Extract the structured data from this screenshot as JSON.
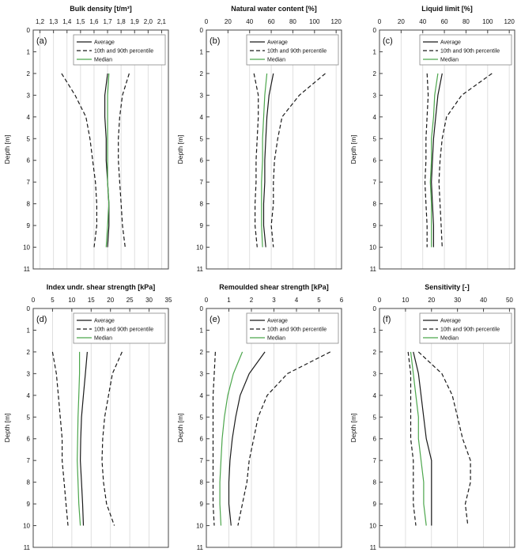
{
  "figure": {
    "background": "#ffffff"
  },
  "style": {
    "grid_color": "#dcdcdc",
    "axis_color": "#444444",
    "line_black": "#1a1a1a",
    "line_green": "#4ca64c",
    "legend_border": "#888888",
    "legend_background": "#ffffff"
  },
  "legend_entries": [
    {
      "label": "Average",
      "dash": false,
      "color": "black"
    },
    {
      "label": "10th and 90th percentile",
      "dash": true,
      "color": "black"
    },
    {
      "label": "Median",
      "dash": false,
      "color": "green"
    }
  ],
  "chart_data": [
    {
      "type": "line",
      "panel_label": "(a)",
      "title": "Bulk density [t/m³]",
      "ylabel": "Depth [m]",
      "xlim": [
        1.15,
        2.15
      ],
      "xticks": [
        1.2,
        1.3,
        1.4,
        1.5,
        1.6,
        1.7,
        1.8,
        1.9,
        2.0,
        2.1
      ],
      "xtick_labels": [
        "1,2",
        "1,3",
        "1,4",
        "1,5",
        "1,6",
        "1,7",
        "1,8",
        "1,9",
        "2,0",
        "2,1"
      ],
      "ylim": [
        0,
        11
      ],
      "yticks": [
        0,
        1,
        2,
        3,
        4,
        5,
        6,
        7,
        8,
        9,
        10,
        11
      ],
      "depths": [
        2,
        3,
        4,
        5,
        6,
        7,
        8,
        9,
        10
      ],
      "series": [
        {
          "name": "Average",
          "color": "black",
          "dash": false,
          "values": [
            1.7,
            1.68,
            1.68,
            1.69,
            1.69,
            1.7,
            1.71,
            1.71,
            1.7
          ]
        },
        {
          "name": "10th percentile",
          "color": "black",
          "dash": true,
          "values": [
            1.36,
            1.46,
            1.54,
            1.57,
            1.59,
            1.61,
            1.62,
            1.62,
            1.6
          ]
        },
        {
          "name": "90th percentile",
          "color": "black",
          "dash": true,
          "values": [
            1.86,
            1.81,
            1.79,
            1.78,
            1.78,
            1.79,
            1.8,
            1.81,
            1.83
          ]
        },
        {
          "name": "Median",
          "color": "green",
          "dash": false,
          "values": [
            1.71,
            1.7,
            1.7,
            1.7,
            1.7,
            1.7,
            1.71,
            1.7,
            1.69
          ]
        }
      ]
    },
    {
      "type": "line",
      "panel_label": "(b)",
      "title": "Natural water content [%]",
      "ylabel": "Depth [m]",
      "xlim": [
        0,
        125
      ],
      "xticks": [
        0,
        20,
        40,
        60,
        80,
        100,
        120
      ],
      "xtick_labels": [
        "0",
        "20",
        "40",
        "60",
        "80",
        "100",
        "120"
      ],
      "ylim": [
        0,
        11
      ],
      "yticks": [
        0,
        1,
        2,
        3,
        4,
        5,
        6,
        7,
        8,
        9,
        10,
        11
      ],
      "depths": [
        2,
        3,
        4,
        5,
        6,
        7,
        8,
        9,
        10
      ],
      "series": [
        {
          "name": "Average",
          "color": "black",
          "dash": false,
          "values": [
            62,
            58,
            56,
            55,
            54,
            54,
            53,
            53,
            55
          ]
        },
        {
          "name": "10th percentile",
          "color": "black",
          "dash": true,
          "values": [
            44,
            48,
            48,
            47,
            46,
            46,
            45,
            45,
            47
          ]
        },
        {
          "name": "90th percentile",
          "color": "black",
          "dash": true,
          "values": [
            110,
            86,
            70,
            66,
            63,
            62,
            62,
            60,
            62
          ]
        },
        {
          "name": "Median",
          "color": "green",
          "dash": false,
          "values": [
            56,
            54,
            53,
            52,
            52,
            51,
            51,
            51,
            52
          ]
        }
      ]
    },
    {
      "type": "line",
      "panel_label": "(c)",
      "title": "Liquid limit [%]",
      "ylabel": "Depth [m]",
      "xlim": [
        0,
        125
      ],
      "xticks": [
        0,
        20,
        40,
        60,
        80,
        100,
        120
      ],
      "xtick_labels": [
        "0",
        "20",
        "40",
        "60",
        "80",
        "100",
        "120"
      ],
      "ylim": [
        0,
        11
      ],
      "yticks": [
        0,
        1,
        2,
        3,
        4,
        5,
        6,
        7,
        8,
        9,
        10,
        11
      ],
      "depths": [
        2,
        3,
        4,
        5,
        6,
        7,
        8,
        9,
        10
      ],
      "series": [
        {
          "name": "Average",
          "color": "black",
          "dash": false,
          "values": [
            58,
            54,
            52,
            50,
            49,
            48,
            49,
            50,
            50
          ]
        },
        {
          "name": "10th percentile",
          "color": "black",
          "dash": true,
          "values": [
            44,
            45,
            44,
            43,
            43,
            42,
            43,
            44,
            44
          ]
        },
        {
          "name": "90th percentile",
          "color": "black",
          "dash": true,
          "values": [
            104,
            76,
            62,
            58,
            56,
            55,
            56,
            57,
            58
          ]
        },
        {
          "name": "Median",
          "color": "green",
          "dash": false,
          "values": [
            54,
            51,
            50,
            48,
            48,
            47,
            48,
            48,
            48
          ]
        }
      ]
    },
    {
      "type": "line",
      "panel_label": "(d)",
      "title": "Index undr. shear strength [kPa]",
      "ylabel": "Depth [m]",
      "xlim": [
        0,
        35
      ],
      "xticks": [
        0,
        5,
        10,
        15,
        20,
        25,
        30,
        35
      ],
      "xtick_labels": [
        "0",
        "5",
        "10",
        "15",
        "20",
        "25",
        "30",
        "35"
      ],
      "ylim": [
        0,
        11
      ],
      "yticks": [
        0,
        1,
        2,
        3,
        4,
        5,
        6,
        7,
        8,
        9,
        10,
        11
      ],
      "depths": [
        2,
        3,
        4,
        5,
        6,
        7,
        8,
        9,
        10
      ],
      "series": [
        {
          "name": "Average",
          "color": "black",
          "dash": false,
          "values": [
            14,
            13.5,
            13,
            12.5,
            12.3,
            12.2,
            12.5,
            12.8,
            13
          ]
        },
        {
          "name": "10th percentile",
          "color": "black",
          "dash": true,
          "values": [
            5,
            6,
            6.5,
            7,
            7.5,
            7.5,
            8,
            8.5,
            9
          ]
        },
        {
          "name": "90th percentile",
          "color": "black",
          "dash": true,
          "values": [
            23,
            20.5,
            19.5,
            18.5,
            18,
            17.8,
            18.2,
            19,
            21
          ]
        },
        {
          "name": "Median",
          "color": "green",
          "dash": false,
          "values": [
            12,
            12,
            11.8,
            11.6,
            11.5,
            11.4,
            11.6,
            11.8,
            12.2
          ]
        }
      ]
    },
    {
      "type": "line",
      "panel_label": "(e)",
      "title": "Remoulded shear strength [kPa]",
      "ylabel": "Depth [m]",
      "xlim": [
        0,
        6
      ],
      "xticks": [
        0,
        1,
        2,
        3,
        4,
        5,
        6
      ],
      "xtick_labels": [
        "0",
        "1",
        "2",
        "3",
        "4",
        "5",
        "6"
      ],
      "ylim": [
        0,
        11
      ],
      "yticks": [
        0,
        1,
        2,
        3,
        4,
        5,
        6,
        7,
        8,
        9,
        10,
        11
      ],
      "depths": [
        2,
        3,
        4,
        5,
        6,
        7,
        8,
        9,
        10
      ],
      "series": [
        {
          "name": "Average",
          "color": "black",
          "dash": false,
          "values": [
            2.6,
            1.9,
            1.5,
            1.3,
            1.15,
            1.05,
            1.0,
            1.0,
            1.1
          ]
        },
        {
          "name": "10th percentile",
          "color": "black",
          "dash": true,
          "values": [
            0.4,
            0.35,
            0.3,
            0.3,
            0.3,
            0.3,
            0.3,
            0.3,
            0.35
          ]
        },
        {
          "name": "90th percentile",
          "color": "black",
          "dash": true,
          "values": [
            5.5,
            3.6,
            2.7,
            2.3,
            2.1,
            1.9,
            1.8,
            1.6,
            1.4
          ]
        },
        {
          "name": "Median",
          "color": "green",
          "dash": false,
          "values": [
            1.6,
            1.2,
            0.95,
            0.8,
            0.7,
            0.65,
            0.6,
            0.6,
            0.65
          ]
        }
      ]
    },
    {
      "type": "line",
      "panel_label": "(f)",
      "title": "Sensitivity [-]",
      "ylabel": "Depth [m]",
      "xlim": [
        0,
        52
      ],
      "xticks": [
        0,
        10,
        20,
        30,
        40,
        50
      ],
      "xtick_labels": [
        "0",
        "10",
        "20",
        "30",
        "40",
        "50"
      ],
      "ylim": [
        0,
        11
      ],
      "yticks": [
        0,
        1,
        2,
        3,
        4,
        5,
        6,
        7,
        8,
        9,
        10,
        11
      ],
      "depths": [
        2,
        3,
        4,
        5,
        6,
        7,
        8,
        9,
        10
      ],
      "series": [
        {
          "name": "Average",
          "color": "black",
          "dash": false,
          "values": [
            13,
            15,
            16,
            17,
            18,
            20,
            20,
            20,
            20
          ]
        },
        {
          "name": "10th percentile",
          "color": "black",
          "dash": true,
          "values": [
            11,
            12,
            12,
            12,
            12,
            13,
            13,
            13,
            14
          ]
        },
        {
          "name": "90th percentile",
          "color": "black",
          "dash": true,
          "values": [
            15,
            24,
            28,
            30,
            32,
            35,
            35,
            33,
            34
          ]
        },
        {
          "name": "Median",
          "color": "green",
          "dash": false,
          "values": [
            12,
            13,
            14,
            15,
            15,
            16,
            17,
            17,
            18
          ]
        }
      ]
    }
  ]
}
